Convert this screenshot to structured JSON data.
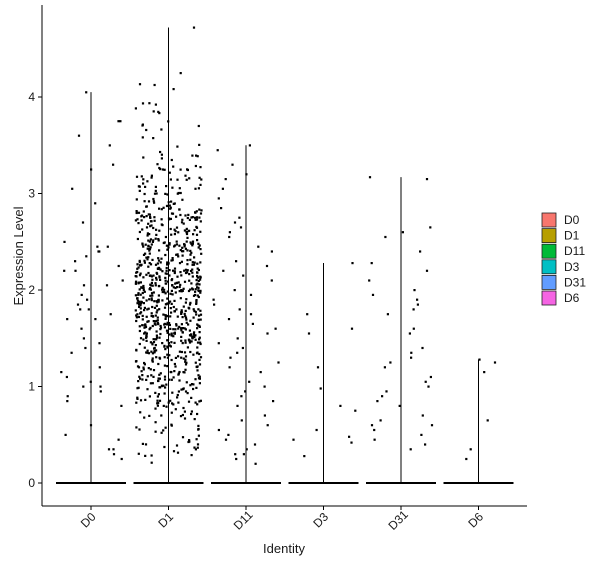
{
  "chart_data": {
    "type": "scatter",
    "subtype": "violin-jitter",
    "title": "",
    "xlabel": "Identity",
    "ylabel": "Expression Level",
    "categories": [
      "D0",
      "D1",
      "D11",
      "D3",
      "D31",
      "D6"
    ],
    "ylim": [
      -0.2,
      4.85
    ],
    "yticks": [
      0,
      1,
      2,
      3,
      4
    ],
    "grid": false,
    "legend_position": "right",
    "legend": [
      {
        "label": "D0",
        "color": "#F8766D"
      },
      {
        "label": "D1",
        "color": "#B79F00"
      },
      {
        "label": "D11",
        "color": "#00BA38"
      },
      {
        "label": "D3",
        "color": "#00BFC4"
      },
      {
        "label": "D31",
        "color": "#619CFF"
      },
      {
        "label": "D6",
        "color": "#F564E3"
      }
    ],
    "series": [
      {
        "category": "D0",
        "max": 4.05,
        "zero_fraction": "majority",
        "points": [
          3.75,
          3.25,
          2.9,
          2.7,
          2.45,
          2.4,
          2.2,
          2.1,
          2.05,
          1.9,
          1.85,
          1.8,
          1.75,
          1.7,
          1.6,
          1.45,
          1.4,
          1.35,
          1.15,
          1.1,
          1.05,
          1.0,
          0.95,
          0.9,
          0.8,
          0.6,
          0.45,
          0.35,
          0.3,
          0.25,
          3.6,
          3.5,
          3.3,
          3.05,
          2.5,
          2.45,
          2.35,
          2.3,
          2.25,
          2.2,
          2.05,
          1.95,
          1.8,
          1.7,
          1.5,
          1.2,
          1.0,
          0.85,
          0.5,
          0.35,
          4.05,
          3.75,
          2.4
        ]
      },
      {
        "category": "D1",
        "max": 4.72,
        "zero_fraction": "minority",
        "n_nonzero": 900,
        "range": [
          0.2,
          4.72
        ],
        "center": 1.9
      },
      {
        "category": "D11",
        "max": 3.5,
        "zero_fraction": "majority",
        "points": [
          3.45,
          3.3,
          3.15,
          3.05,
          2.95,
          2.85,
          2.7,
          2.65,
          2.55,
          2.45,
          2.3,
          2.25,
          2.2,
          2.1,
          2.0,
          1.95,
          1.9,
          1.85,
          1.75,
          1.7,
          1.6,
          1.5,
          1.45,
          1.4,
          1.35,
          1.3,
          1.2,
          1.15,
          1.05,
          0.95,
          0.85,
          0.8,
          0.7,
          0.6,
          0.55,
          0.45,
          0.4,
          0.35,
          0.3,
          0.25,
          0.2,
          3.5,
          3.2,
          2.75,
          2.6,
          2.4,
          2.15,
          1.8,
          1.65,
          1.55,
          1.25,
          1.0,
          0.9,
          0.65,
          0.5,
          0.3
        ]
      },
      {
        "category": "D3",
        "max": 2.28,
        "zero_fraction": "majority",
        "points": [
          2.28,
          1.75,
          1.6,
          1.55,
          1.2,
          0.98,
          0.8,
          0.75,
          0.55,
          0.48,
          0.45,
          0.42,
          0.28
        ]
      },
      {
        "category": "D31",
        "max": 3.17,
        "zero_fraction": "majority",
        "points": [
          3.17,
          3.15,
          2.6,
          2.55,
          2.4,
          2.28,
          2.2,
          2.1,
          2.0,
          1.95,
          1.9,
          1.85,
          1.75,
          1.6,
          1.55,
          1.4,
          1.3,
          1.25,
          1.2,
          1.1,
          1.05,
          0.95,
          0.9,
          0.85,
          0.8,
          0.7,
          0.65,
          0.6,
          0.55,
          0.5,
          0.45,
          0.4,
          0.35,
          2.65,
          1.8,
          1.35,
          1.0,
          0.6
        ]
      },
      {
        "category": "D6",
        "max": 1.28,
        "zero_fraction": "majority",
        "points": [
          1.28,
          1.25,
          1.15,
          0.65,
          0.35,
          0.25
        ]
      }
    ]
  }
}
